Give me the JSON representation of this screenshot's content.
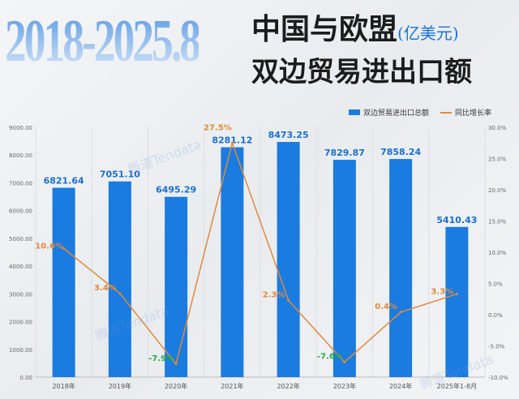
{
  "header": {
    "period": "2018-2025.8",
    "title": "中国与欧盟",
    "unit": "(亿美元)",
    "subtitle": "双边贸易进出口额"
  },
  "watermark": "腾道Tendata",
  "chart_data": {
    "type": "bar+line",
    "categories": [
      "2018年",
      "2019年",
      "2020年",
      "2021年",
      "2022年",
      "2023年",
      "2024年",
      "2025年1-8月"
    ],
    "series": [
      {
        "name": "双边贸易进出口总额",
        "type": "bar",
        "axis": "left",
        "values": [
          6821.64,
          7051.1,
          6495.29,
          8281.12,
          8473.25,
          7829.87,
          7858.24,
          5410.43
        ],
        "labels": [
          "6821.64",
          "7051.10",
          "6495.29",
          "8281.12",
          "8473.25",
          "7829.87",
          "7858.24",
          "5410.43"
        ],
        "color": "#1a7be0"
      },
      {
        "name": "同比增长率",
        "type": "line",
        "axis": "right",
        "values": [
          10.6,
          3.4,
          -7.9,
          27.5,
          2.3,
          -7.6,
          0.4,
          3.3
        ],
        "labels": [
          "10.6%",
          "3.4%",
          "-7.9%",
          "27.5%",
          "2.3%",
          "-7.6%",
          "0.4%",
          "3.3%"
        ],
        "color": "#e08a3c",
        "positive_label_color": "#e08a3c",
        "negative_label_color": "#2aa84a"
      }
    ],
    "yleft": {
      "lim": [
        0,
        9000
      ],
      "ticks": [
        "0.00",
        "1000.00",
        "2000.00",
        "3000.00",
        "4000.00",
        "5000.00",
        "6000.00",
        "7000.00",
        "8000.00",
        "9000.00"
      ]
    },
    "yright": {
      "lim": [
        -10,
        30
      ],
      "ticks": [
        "-10.0%",
        "-5.0%",
        "0.0%",
        "5.0%",
        "10.0%",
        "15.0%",
        "20.0%",
        "25.0%",
        "30.0%"
      ]
    },
    "grid": "vertical",
    "legend": "top-right"
  }
}
